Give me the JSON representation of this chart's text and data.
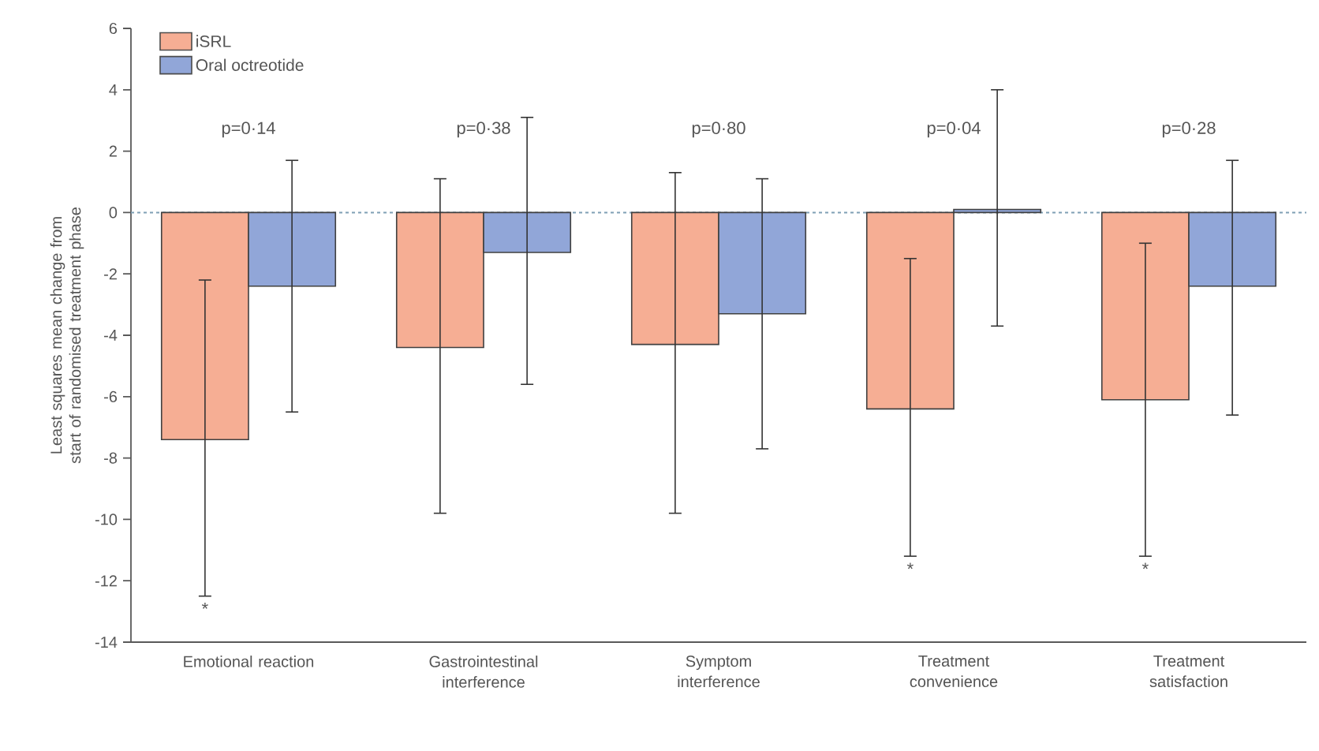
{
  "chart_data": {
    "type": "bar",
    "ylabel": "Least squares mean change from start of randomised treatment phase",
    "categories": [
      "Emotional reaction",
      "Gastrointestinal interference",
      "Symptom interference",
      "Treatment convenience",
      "Treatment satisfaction"
    ],
    "series": [
      {
        "name": "iSRL",
        "color": "#f6ae94",
        "values": [
          -7.4,
          -4.4,
          -4.3,
          -6.4,
          -6.1
        ],
        "errors": [
          [
            -12.5,
            -2.2
          ],
          [
            -9.8,
            1.1
          ],
          [
            -9.8,
            1.3
          ],
          [
            -11.2,
            -1.5
          ],
          [
            -11.2,
            -1.0
          ]
        ]
      },
      {
        "name": "Oral octreotide",
        "color": "#91a6d8",
        "values": [
          -2.4,
          -1.3,
          -3.3,
          0.1,
          -2.4
        ],
        "errors": [
          [
            -6.5,
            1.7
          ],
          [
            -5.6,
            3.1
          ],
          [
            -7.7,
            1.1
          ],
          [
            -3.7,
            4.0
          ],
          [
            -6.6,
            1.7
          ]
        ]
      }
    ],
    "ylim": [
      -14,
      6
    ],
    "yticks": [
      -14,
      -12,
      -10,
      -8,
      -6,
      -4,
      -2,
      0,
      2,
      4,
      6
    ],
    "ref_lines": [
      {
        "axis": "y",
        "value": 0,
        "color": "#7f9fb5",
        "line_style": "dotted"
      }
    ],
    "annotations": [
      "p=0·14",
      "p=0·38",
      "p=0·80",
      "p=0·04",
      "p=0·28",
      "*",
      "*",
      "*"
    ],
    "legend": "top left",
    "grid": false
  }
}
